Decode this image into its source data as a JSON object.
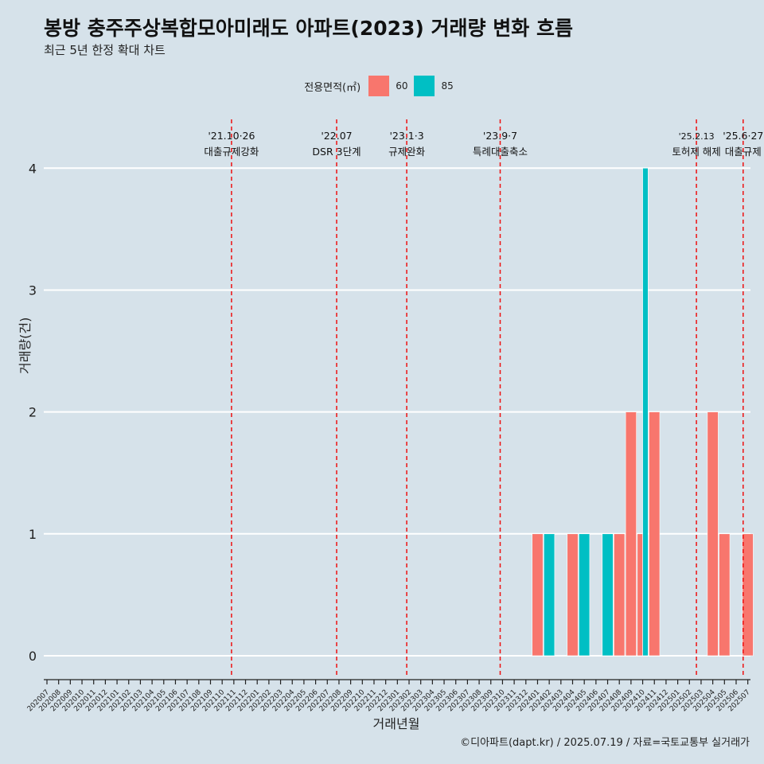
{
  "title": "봉방 충주주상복합모아미래도 아파트(2023) 거래량 변화 흐름",
  "subtitle": "최근 5년 한정 확대 차트",
  "caption": "©디아파트(dapt.kr) / 2025.07.19 / 자료=국토교통부 실거래가",
  "legend": {
    "title": "전용면적(㎡)",
    "items": [
      {
        "label": "60",
        "color": "#f8766d"
      },
      {
        "label": "85",
        "color": "#00bfc4"
      }
    ]
  },
  "chart_data": {
    "type": "bar",
    "title": "봉방 충주주상복합모아미래도 아파트(2023) 거래량 변화 흐름",
    "subtitle": "최근 5년 한정 확대 차트",
    "xlabel": "거래년월",
    "ylabel": "거래량(건)",
    "ylim": [
      -0.17,
      4.4
    ],
    "yticks": [
      0,
      1,
      2,
      3,
      4
    ],
    "grid": true,
    "legend_position": "top",
    "categories": [
      "202007",
      "202008",
      "202009",
      "202010",
      "202011",
      "202012",
      "202101",
      "202102",
      "202103",
      "202104",
      "202105",
      "202106",
      "202107",
      "202108",
      "202109",
      "202110",
      "202111",
      "202112",
      "202201",
      "202202",
      "202203",
      "202204",
      "202205",
      "202206",
      "202207",
      "202208",
      "202209",
      "202210",
      "202211",
      "202212",
      "202301",
      "202302",
      "202303",
      "202304",
      "202305",
      "202306",
      "202307",
      "202308",
      "202309",
      "202310",
      "202311",
      "202312",
      "202401",
      "202402",
      "202403",
      "202404",
      "202405",
      "202406",
      "202407",
      "202408",
      "202409",
      "202410",
      "202411",
      "202412",
      "202501",
      "202502",
      "202503",
      "202504",
      "202505",
      "202506",
      "202507"
    ],
    "series": [
      {
        "name": "60",
        "color": "#f8766d",
        "points": [
          {
            "x": "202401",
            "y": 1
          },
          {
            "x": "202404",
            "y": 1
          },
          {
            "x": "202408",
            "y": 1
          },
          {
            "x": "202409",
            "y": 2
          },
          {
            "x": "202410",
            "y": 1
          },
          {
            "x": "202411",
            "y": 2
          },
          {
            "x": "202504",
            "y": 2
          },
          {
            "x": "202505",
            "y": 1
          },
          {
            "x": "202507",
            "y": 1
          }
        ]
      },
      {
        "name": "85",
        "color": "#00bfc4",
        "points": [
          {
            "x": "202402",
            "y": 1
          },
          {
            "x": "202405",
            "y": 1
          },
          {
            "x": "202407",
            "y": 1
          },
          {
            "x": "202410",
            "y": 4
          }
        ]
      }
    ],
    "events": [
      {
        "month_index": 15.8,
        "date": "'21.10·26",
        "label": "대출규제강화"
      },
      {
        "month_index": 24.8,
        "date": "'22.07",
        "label": "DSR 3단계"
      },
      {
        "month_index": 30.8,
        "date": "'23.1·3",
        "label": "규제완화"
      },
      {
        "month_index": 38.8,
        "date": "'23.9·7",
        "label": "특례대출축소"
      },
      {
        "month_index": 55.6,
        "date": "'25.2.13",
        "label": "토허제 해제"
      },
      {
        "month_index": 59.6,
        "date": "'25.6·27",
        "label": "대출규제"
      }
    ]
  }
}
